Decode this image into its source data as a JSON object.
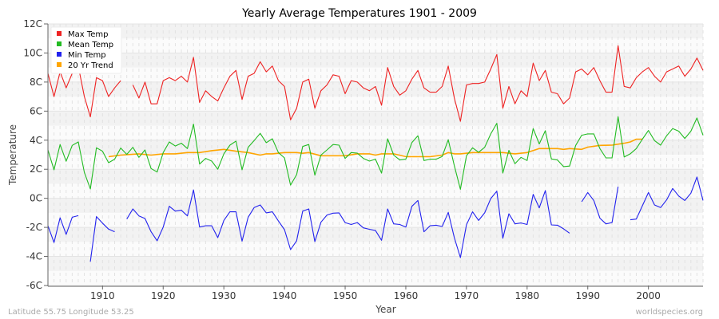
{
  "chart_data": {
    "type": "line",
    "title": "Yearly Average Temperatures 1901 - 2009",
    "xlabel": "Year",
    "ylabel": "Temperature",
    "xlim": [
      1901,
      2009
    ],
    "ylim": [
      -6,
      12
    ],
    "x_ticks": [
      1910,
      1920,
      1930,
      1940,
      1950,
      1960,
      1970,
      1980,
      1990,
      2000
    ],
    "y_ticks": [
      {
        "value": -6,
        "label": "-6C"
      },
      {
        "value": -4,
        "label": "-4C"
      },
      {
        "value": -2,
        "label": "-2C"
      },
      {
        "value": 0,
        "label": "0C"
      },
      {
        "value": 2,
        "label": "2C"
      },
      {
        "value": 4,
        "label": "4C"
      },
      {
        "value": 6,
        "label": "6C"
      },
      {
        "value": 8,
        "label": "8C"
      },
      {
        "value": 10,
        "label": "10C"
      },
      {
        "value": 12,
        "label": "12C"
      }
    ],
    "grid": true,
    "legend_position": "top-left",
    "start_year": 1901,
    "series": [
      {
        "name": "Max Temp",
        "color": "#ee2222",
        "values": [
          8.6,
          7.0,
          8.7,
          7.6,
          8.6,
          9.1,
          7.0,
          5.6,
          8.3,
          8.1,
          7.0,
          7.6,
          8.1,
          null,
          7.8,
          6.9,
          8.0,
          6.5,
          6.5,
          8.1,
          8.3,
          8.1,
          8.4,
          8.0,
          9.7,
          6.6,
          7.4,
          7.0,
          6.7,
          7.6,
          8.4,
          8.8,
          6.8,
          8.4,
          8.6,
          9.4,
          8.7,
          9.1,
          8.1,
          7.7,
          5.4,
          6.2,
          8.0,
          8.2,
          6.2,
          7.4,
          7.8,
          8.5,
          8.4,
          7.2,
          8.1,
          8.0,
          7.6,
          7.4,
          7.7,
          6.4,
          9.0,
          7.7,
          7.1,
          7.4,
          8.2,
          8.8,
          7.6,
          7.3,
          7.3,
          7.7,
          9.1,
          6.9,
          5.3,
          7.8,
          7.9,
          7.9,
          8.0,
          8.9,
          9.9,
          6.2,
          7.7,
          6.5,
          7.4,
          7.0,
          9.3,
          8.1,
          8.8,
          7.3,
          7.2,
          6.5,
          6.9,
          8.7,
          8.9,
          8.5,
          9.0,
          8.1,
          7.3,
          7.3,
          10.5,
          7.7,
          7.6,
          8.3,
          8.7,
          9.0,
          8.4,
          8.0,
          8.7,
          8.9,
          9.1,
          8.4,
          8.9,
          9.65,
          8.8
        ]
      },
      {
        "name": "Mean Temp",
        "color": "#22bb22",
        "values": [
          3.33,
          1.96,
          3.7,
          2.55,
          3.64,
          3.88,
          1.78,
          0.64,
          3.48,
          3.24,
          2.45,
          2.69,
          3.46,
          3.02,
          3.51,
          2.82,
          3.33,
          2.05,
          1.81,
          3.15,
          3.88,
          3.6,
          3.79,
          3.42,
          5.11,
          2.36,
          2.75,
          2.56,
          2.0,
          3.06,
          3.66,
          3.94,
          1.96,
          3.51,
          3.97,
          4.47,
          3.83,
          4.1,
          3.15,
          2.78,
          0.91,
          1.63,
          3.57,
          3.7,
          1.59,
          2.97,
          3.33,
          3.7,
          3.66,
          2.75,
          3.15,
          3.11,
          2.75,
          2.56,
          2.69,
          1.74,
          4.1,
          2.97,
          2.64,
          2.69,
          3.84,
          4.3,
          2.6,
          2.69,
          2.69,
          2.88,
          4.03,
          2.24,
          0.62,
          2.93,
          3.48,
          3.17,
          3.51,
          4.43,
          5.16,
          1.74,
          3.3,
          2.38,
          2.82,
          2.6,
          4.8,
          3.74,
          4.65,
          2.71,
          2.64,
          2.18,
          2.22,
          3.64,
          4.34,
          4.43,
          4.43,
          3.42,
          2.78,
          2.78,
          5.62,
          2.84,
          3.06,
          3.42,
          4.07,
          4.67,
          3.97,
          3.66,
          4.3,
          4.8,
          4.62,
          4.12,
          4.62,
          5.53,
          4.34
        ]
      },
      {
        "name": "Min Temp",
        "color": "#2222ee",
        "values": [
          -1.89,
          -3.04,
          -1.34,
          -2.48,
          -1.3,
          -1.19,
          null,
          -4.36,
          -1.26,
          -1.71,
          -2.12,
          -2.3,
          null,
          -1.43,
          -0.73,
          -1.21,
          -1.39,
          -2.3,
          -2.92,
          -1.98,
          -0.55,
          -0.88,
          -0.82,
          -1.21,
          0.58,
          -1.98,
          -1.89,
          -1.89,
          -2.71,
          -1.52,
          -0.93,
          -0.93,
          -2.95,
          -1.3,
          -0.64,
          -0.46,
          -1.0,
          -0.93,
          -1.56,
          -2.16,
          -3.53,
          -2.92,
          -0.88,
          -0.73,
          -2.98,
          -1.65,
          -1.15,
          -1.02,
          -1.0,
          -1.67,
          -1.8,
          -1.67,
          -2.03,
          -2.13,
          -2.22,
          -2.89,
          -0.73,
          -1.76,
          -1.8,
          -1.98,
          -0.55,
          -0.15,
          -2.3,
          -1.89,
          -1.85,
          -1.94,
          -0.97,
          -2.71,
          -4.08,
          -1.82,
          -0.93,
          -1.52,
          -1.0,
          -0.02,
          0.49,
          -2.75,
          -1.06,
          -1.76,
          -1.7,
          -1.8,
          0.27,
          -0.66,
          0.53,
          -1.83,
          -1.85,
          -2.1,
          -2.4,
          null,
          -0.24,
          0.4,
          -0.15,
          -1.37,
          -1.76,
          -1.67,
          0.8,
          null,
          -1.48,
          -1.43,
          -0.51,
          0.4,
          -0.46,
          -0.64,
          -0.11,
          0.68,
          0.16,
          -0.15,
          0.35,
          1.47,
          -0.15
        ]
      },
      {
        "name": "20 Yr Trend",
        "color": "#ffa500",
        "points": [
          [
            1911,
            2.87
          ],
          [
            1913,
            2.97
          ],
          [
            1916,
            3.06
          ],
          [
            1918,
            2.97
          ],
          [
            1920,
            3.06
          ],
          [
            1922,
            3.06
          ],
          [
            1924,
            3.15
          ],
          [
            1926,
            3.15
          ],
          [
            1928,
            3.28
          ],
          [
            1930,
            3.37
          ],
          [
            1932,
            3.24
          ],
          [
            1934,
            3.15
          ],
          [
            1936,
            2.97
          ],
          [
            1937,
            3.06
          ],
          [
            1938,
            3.06
          ],
          [
            1940,
            3.15
          ],
          [
            1942,
            3.15
          ],
          [
            1943,
            3.1
          ],
          [
            1944,
            3.15
          ],
          [
            1946,
            2.93
          ],
          [
            1950,
            2.93
          ],
          [
            1952,
            3.06
          ],
          [
            1954,
            3.06
          ],
          [
            1955,
            2.97
          ],
          [
            1956,
            3.06
          ],
          [
            1958,
            3.06
          ],
          [
            1960,
            2.87
          ],
          [
            1962,
            2.87
          ],
          [
            1964,
            2.87
          ],
          [
            1966,
            2.97
          ],
          [
            1967,
            3.15
          ],
          [
            1968,
            3.06
          ],
          [
            1969,
            3.06
          ],
          [
            1971,
            3.15
          ],
          [
            1972,
            3.15
          ],
          [
            1976,
            3.15
          ],
          [
            1978,
            3.06
          ],
          [
            1980,
            3.15
          ],
          [
            1982,
            3.42
          ],
          [
            1985,
            3.42
          ],
          [
            1986,
            3.37
          ],
          [
            1987,
            3.42
          ],
          [
            1989,
            3.37
          ],
          [
            1990,
            3.52
          ],
          [
            1992,
            3.64
          ],
          [
            1994,
            3.66
          ],
          [
            1996,
            3.79
          ],
          [
            1997,
            3.88
          ],
          [
            1998,
            4.07
          ],
          [
            1999,
            4.07
          ]
        ]
      }
    ]
  },
  "footer": {
    "location": "Latitude 55.75 Longitude 53.25",
    "source": "worldspecies.org"
  }
}
